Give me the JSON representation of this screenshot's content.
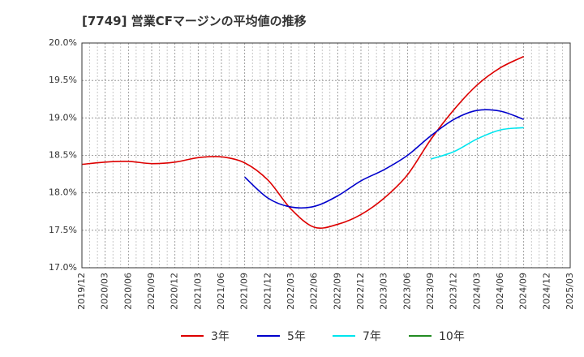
{
  "chart_data": {
    "type": "line",
    "title": "[7749]  営業CFマージンの平均値の推移",
    "xlabel": "",
    "ylabel": "",
    "x_ticks": [
      "2019/12",
      "2020/03",
      "2020/06",
      "2020/09",
      "2020/12",
      "2021/03",
      "2021/06",
      "2021/09",
      "2021/12",
      "2022/03",
      "2022/06",
      "2022/09",
      "2022/12",
      "2023/03",
      "2023/06",
      "2023/09",
      "2023/12",
      "2024/03",
      "2024/06",
      "2024/09",
      "2024/12",
      "2025/03"
    ],
    "y_ticks": [
      "17.0%",
      "17.5%",
      "18.0%",
      "18.5%",
      "19.0%",
      "19.5%",
      "20.0%"
    ],
    "ylim": [
      17.0,
      20.0
    ],
    "grid": true,
    "legend_position": "bottom",
    "series": [
      {
        "name": "3年",
        "color": "#dd0000",
        "x": [
          "2019/12",
          "2020/03",
          "2020/06",
          "2020/09",
          "2020/12",
          "2021/03",
          "2021/06",
          "2021/09",
          "2021/12",
          "2022/03",
          "2022/06",
          "2022/09",
          "2022/12",
          "2023/03",
          "2023/06",
          "2023/09",
          "2023/12",
          "2024/03",
          "2024/06",
          "2024/09"
        ],
        "values": [
          18.38,
          18.41,
          18.42,
          18.39,
          18.41,
          18.47,
          18.48,
          18.4,
          18.17,
          17.78,
          17.54,
          17.58,
          17.71,
          17.93,
          18.24,
          18.71,
          19.11,
          19.44,
          19.67,
          19.82
        ]
      },
      {
        "name": "5年",
        "color": "#0000cc",
        "x": [
          "2021/09",
          "2021/12",
          "2022/03",
          "2022/06",
          "2022/09",
          "2022/12",
          "2023/03",
          "2023/06",
          "2023/09",
          "2023/12",
          "2024/03",
          "2024/06",
          "2024/09"
        ],
        "values": [
          18.21,
          17.93,
          17.81,
          17.82,
          17.96,
          18.16,
          18.31,
          18.5,
          18.76,
          18.98,
          19.1,
          19.09,
          18.98
        ]
      },
      {
        "name": "7年",
        "color": "#00e5ee",
        "x": [
          "2023/09",
          "2023/12",
          "2024/03",
          "2024/06",
          "2024/09"
        ],
        "values": [
          18.45,
          18.55,
          18.72,
          18.84,
          18.87
        ]
      },
      {
        "name": "10年",
        "color": "#228b22",
        "x": [],
        "values": []
      }
    ]
  }
}
